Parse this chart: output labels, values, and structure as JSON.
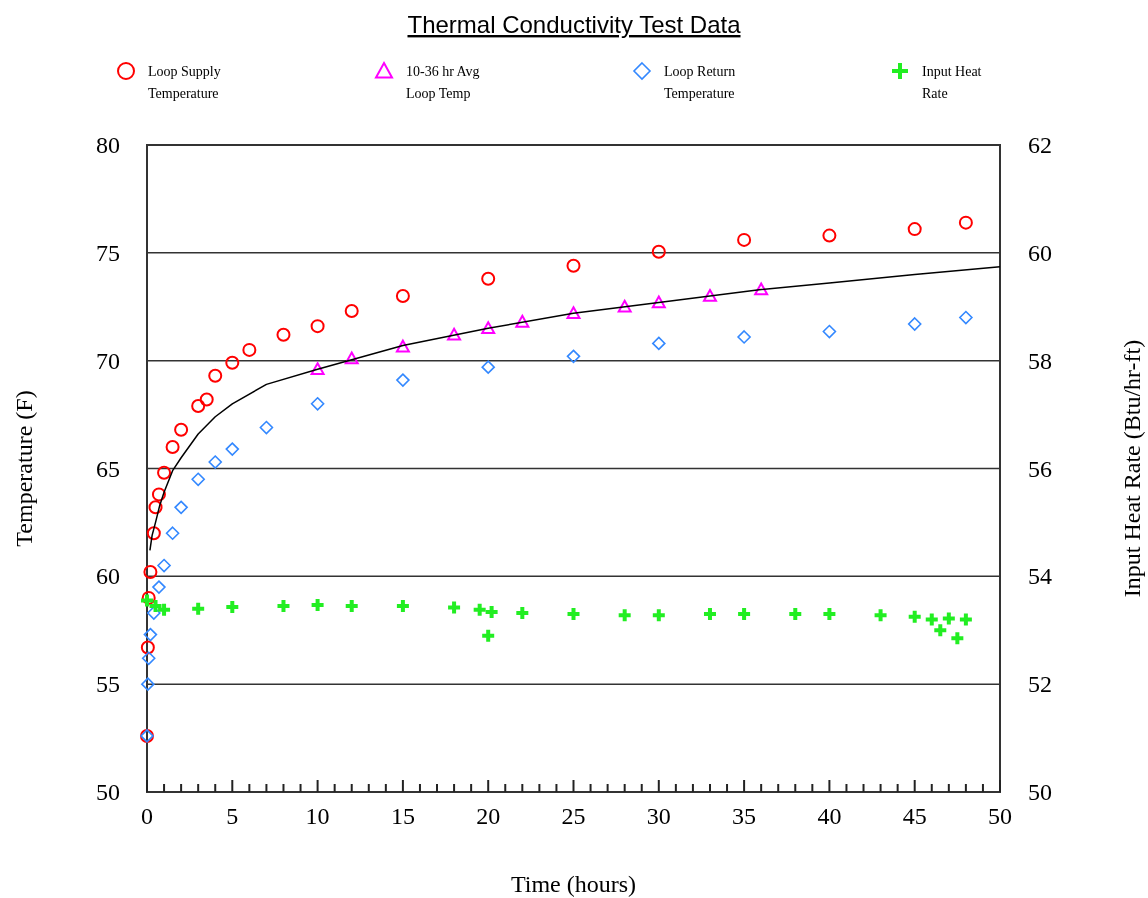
{
  "chart_data": {
    "type": "scatter",
    "title": "Thermal Conductivity Test Data",
    "xlabel": "Time (hours)",
    "ylabel": "Temperature (F)",
    "y2label": "Input Heat Rate (Btu/hr-ft)",
    "xlim": [
      0,
      50
    ],
    "ylim": [
      50,
      80
    ],
    "y2lim": [
      50,
      62
    ],
    "xticks": [
      0,
      {
        "value": 1,
        "label": null
      },
      {
        "value": 2,
        "label": null
      },
      {
        "value": 3,
        "label": null
      },
      {
        "value": 4,
        "label": null
      },
      5,
      {
        "value": 6,
        "label": null
      },
      {
        "value": 7,
        "label": null
      },
      {
        "value": 8,
        "label": null
      },
      {
        "value": 9,
        "label": null
      },
      10,
      {
        "value": 11,
        "label": null
      },
      {
        "value": 12,
        "label": null
      },
      {
        "value": 13,
        "label": null
      },
      {
        "value": 14,
        "label": null
      },
      15,
      {
        "value": 16,
        "label": null
      },
      {
        "value": 17,
        "label": null
      },
      {
        "value": 18,
        "label": null
      },
      {
        "value": 19,
        "label": null
      },
      20,
      {
        "value": 21,
        "label": null
      },
      {
        "value": 22,
        "label": null
      },
      {
        "value": 23,
        "label": null
      },
      {
        "value": 24,
        "label": null
      },
      25,
      {
        "value": 26,
        "label": null
      },
      {
        "value": 27,
        "label": null
      },
      {
        "value": 28,
        "label": null
      },
      {
        "value": 29,
        "label": null
      },
      30,
      {
        "value": 31,
        "label": null
      },
      {
        "value": 32,
        "label": null
      },
      {
        "value": 33,
        "label": null
      },
      {
        "value": 34,
        "label": null
      },
      35,
      {
        "value": 36,
        "label": null
      },
      {
        "value": 37,
        "label": null
      },
      {
        "value": 38,
        "label": null
      },
      {
        "value": 39,
        "label": null
      },
      40,
      {
        "value": 41,
        "label": null
      },
      {
        "value": 42,
        "label": null
      },
      {
        "value": 43,
        "label": null
      },
      {
        "value": 44,
        "label": null
      },
      45,
      {
        "value": 46,
        "label": null
      },
      {
        "value": 47,
        "label": null
      },
      {
        "value": 48,
        "label": null
      },
      {
        "value": 49,
        "label": null
      },
      50
    ],
    "yticks": [
      50,
      55,
      60,
      65,
      70,
      75,
      80
    ],
    "y2ticks": [
      50,
      52,
      54,
      56,
      58,
      60,
      62
    ],
    "grid": "y",
    "legend": "top",
    "series": [
      {
        "name": "Loop Supply Temperature",
        "color": "#ff0000",
        "marker": "circle",
        "x": [
          0,
          0.05,
          0.1,
          0.2,
          0.4,
          0.5,
          0.7,
          1,
          1.5,
          2,
          3,
          3.5,
          4,
          5,
          6,
          8,
          10,
          12,
          15,
          20,
          25,
          30,
          35,
          40,
          45,
          48
        ],
        "values": [
          52.6,
          56.7,
          59,
          60.2,
          62,
          63.2,
          63.8,
          64.8,
          66,
          66.8,
          67.9,
          68.2,
          69.3,
          69.9,
          70.5,
          71.2,
          71.6,
          72.3,
          73,
          73.8,
          74.4,
          75.05,
          75.6,
          75.8,
          76.1,
          76.4
        ]
      },
      {
        "name": "10-36 hr Avg Loop Temp",
        "color": "#ff00ff",
        "marker": "triangle",
        "x": [
          10,
          12,
          15,
          18,
          20,
          22,
          25,
          28,
          30,
          33,
          36
        ],
        "values": [
          69.6,
          70.1,
          70.65,
          71.2,
          71.5,
          71.8,
          72.2,
          72.5,
          72.7,
          73.0,
          73.3
        ]
      },
      {
        "name": "Loop Return Temperature",
        "color": "#3388ff",
        "marker": "diamond",
        "x": [
          0,
          0.05,
          0.1,
          0.2,
          0.4,
          0.7,
          1,
          1.5,
          2,
          3,
          4,
          5,
          7,
          10,
          15,
          20,
          25,
          30,
          35,
          40,
          45,
          48
        ],
        "values": [
          52.6,
          55,
          56.2,
          57.3,
          58.3,
          59.5,
          60.5,
          62,
          63.2,
          64.5,
          65.3,
          65.9,
          66.9,
          68,
          69.1,
          69.7,
          70.2,
          70.8,
          71.1,
          71.35,
          71.7,
          72
        ]
      },
      {
        "name": "Input Heat Rate",
        "color": "#22ee22",
        "marker": "cross",
        "axis": "y2",
        "x": [
          0,
          0.5,
          1,
          3,
          5,
          8,
          10,
          12,
          15,
          18,
          19.5,
          20,
          20.2,
          22,
          25,
          28,
          30,
          33,
          35,
          38,
          40,
          43,
          45,
          46,
          46.5,
          47,
          47.5,
          48
        ],
        "values": [
          53.55,
          53.45,
          53.38,
          53.4,
          53.43,
          53.45,
          53.47,
          53.45,
          53.45,
          53.42,
          53.38,
          52.9,
          53.34,
          53.32,
          53.3,
          53.28,
          53.28,
          53.3,
          53.3,
          53.3,
          53.3,
          53.28,
          53.25,
          53.2,
          53.0,
          53.22,
          52.85,
          53.2
        ]
      },
      {
        "type": "line",
        "color": "#000000",
        "marker": "none",
        "x": [
          0.17,
          0.3,
          0.5,
          0.75,
          1,
          1.5,
          2,
          3,
          4,
          5,
          7,
          10,
          15,
          20,
          25,
          30,
          36,
          40,
          45,
          50
        ],
        "values": [
          61.2,
          61.9,
          62.5,
          63.3,
          63.9,
          64.9,
          65.5,
          66.6,
          67.4,
          68.0,
          68.9,
          69.6,
          70.7,
          71.5,
          72.2,
          72.7,
          73.3,
          73.6,
          74.0,
          74.35
        ]
      }
    ]
  }
}
